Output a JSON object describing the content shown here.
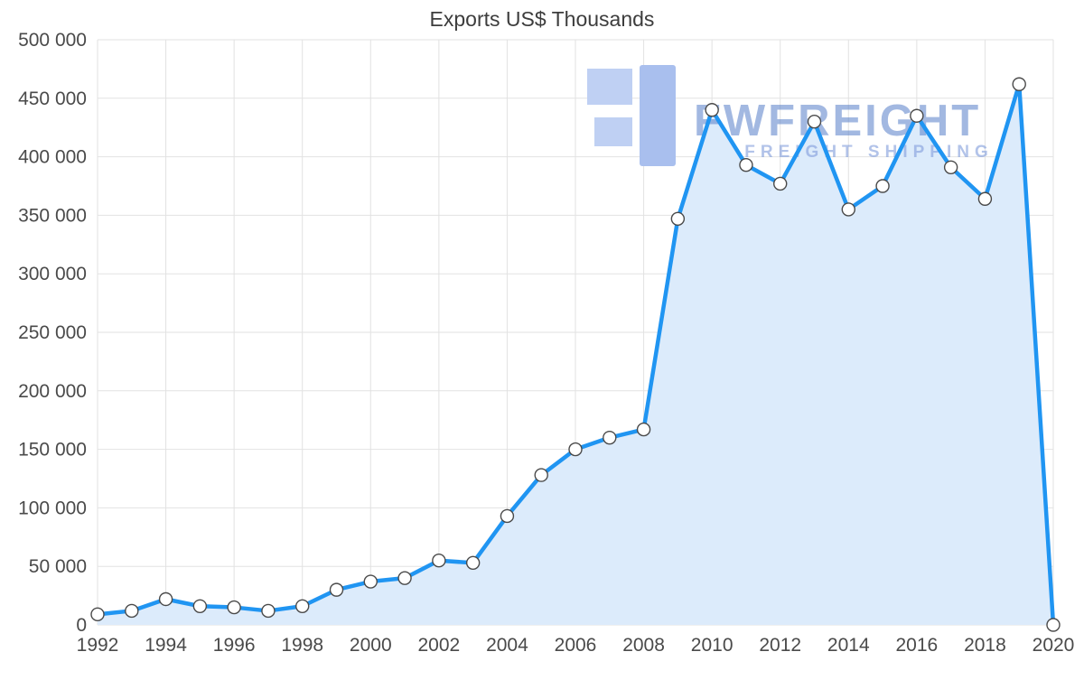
{
  "chart": {
    "title": "Exports US$ Thousands"
  },
  "watermark": {
    "brand": "FWFREIGHT",
    "tagline": "FREIGHT SHIPPING"
  },
  "colors": {
    "line": "#2095f2",
    "fill": "#dcebfb",
    "grid": "#e2e2e2",
    "axis_text": "#4a4a4a",
    "marker_fill": "#ffffff",
    "marker_stroke": "#4a4a4a",
    "watermark_logo": "#b3c7f1"
  },
  "chart_data": {
    "type": "area",
    "title": "Exports US$ Thousands",
    "x": [
      1992,
      1993,
      1994,
      1995,
      1996,
      1997,
      1998,
      1999,
      2000,
      2001,
      2002,
      2003,
      2004,
      2005,
      2006,
      2007,
      2008,
      2009,
      2010,
      2011,
      2012,
      2013,
      2014,
      2015,
      2016,
      2017,
      2018,
      2019,
      2020
    ],
    "values": [
      9000,
      12000,
      22000,
      16000,
      15000,
      12000,
      16000,
      30000,
      37000,
      40000,
      55000,
      53000,
      93000,
      128000,
      150000,
      160000,
      167000,
      347000,
      440000,
      393000,
      377000,
      430000,
      355000,
      375000,
      435000,
      391000,
      364000,
      462000,
      0
    ],
    "xlabel": "",
    "ylabel": "",
    "xlim": [
      1992,
      2020
    ],
    "ylim": [
      0,
      500000
    ],
    "y_tick_step": 50000,
    "x_tick_step": 2,
    "y_tick_labels": [
      "0",
      "50 000",
      "100 000",
      "150 000",
      "200 000",
      "250 000",
      "300 000",
      "350 000",
      "400 000",
      "450 000",
      "500 000"
    ],
    "x_tick_labels": [
      "1992",
      "1994",
      "1996",
      "1998",
      "2000",
      "2002",
      "2004",
      "2006",
      "2008",
      "2010",
      "2012",
      "2014",
      "2016",
      "2018",
      "2020"
    ],
    "grid": true,
    "legend": false,
    "marker": "circle"
  }
}
